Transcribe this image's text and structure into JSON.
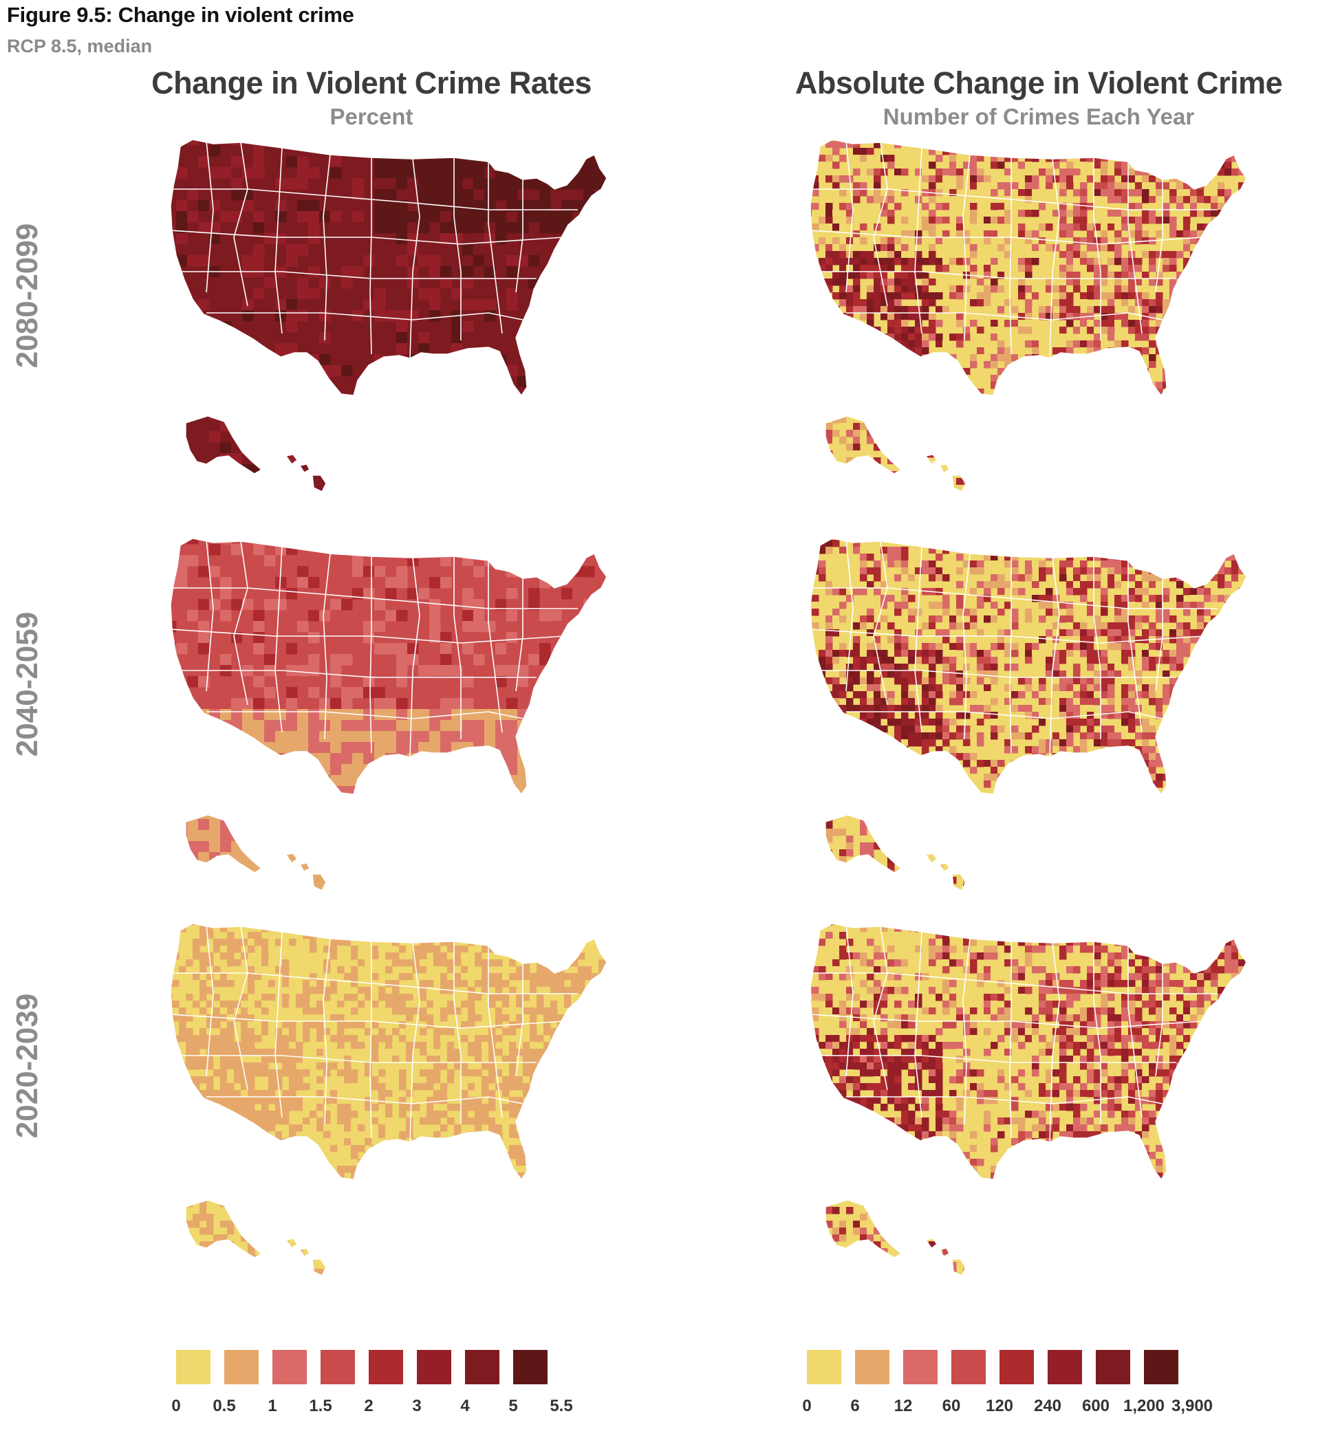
{
  "figure": {
    "title": "Figure 9.5: Change in violent crime",
    "subtitle": "RCP 8.5, median"
  },
  "columns": [
    {
      "title": "Change in Violent Crime Rates",
      "subtitle": "Percent"
    },
    {
      "title": "Absolute Change in Violent Crime",
      "subtitle": "Number of Crimes Each Year"
    }
  ],
  "rows": [
    {
      "period": "2080-2099"
    },
    {
      "period": "2040-2059"
    },
    {
      "period": "2020-2039"
    }
  ],
  "colors": [
    "#f0d86c",
    "#e6a86a",
    "#d96a68",
    "#c94b4c",
    "#ad2a2f",
    "#951f28",
    "#7e1b20",
    "#5e1717"
  ],
  "legends": [
    {
      "ticks": [
        "0",
        "0.5",
        "1",
        "1.5",
        "2",
        "3",
        "4",
        "5",
        "5.5"
      ]
    },
    {
      "ticks": [
        "0",
        "6",
        "12",
        "60",
        "120",
        "240",
        "600",
        "1,200",
        "3,900"
      ]
    }
  ],
  "chart_data": {
    "type": "choropleth-map",
    "region": "United States (counties)",
    "scenario": "RCP 8.5, median",
    "panels": [
      {
        "period": "2080-2099",
        "measure": "Change in Violent Crime Rates (Percent)",
        "dominant_class": 6,
        "range_class": [
          4,
          7
        ]
      },
      {
        "period": "2080-2099",
        "measure": "Absolute Change in Violent Crime (Number of Crimes Each Year)",
        "dominant_class": 0,
        "range_class": [
          0,
          7
        ]
      },
      {
        "period": "2040-2059",
        "measure": "Change in Violent Crime Rates (Percent)",
        "dominant_class": 3,
        "range_class": [
          1,
          4
        ]
      },
      {
        "period": "2040-2059",
        "measure": "Absolute Change in Violent Crime (Number of Crimes Each Year)",
        "dominant_class": 0,
        "range_class": [
          0,
          6
        ]
      },
      {
        "period": "2020-2039",
        "measure": "Change in Violent Crime Rates (Percent)",
        "dominant_class": 0,
        "range_class": [
          0,
          1
        ]
      },
      {
        "period": "2020-2039",
        "measure": "Absolute Change in Violent Crime (Number of Crimes Each Year)",
        "dominant_class": 0,
        "range_class": [
          0,
          5
        ]
      }
    ]
  }
}
